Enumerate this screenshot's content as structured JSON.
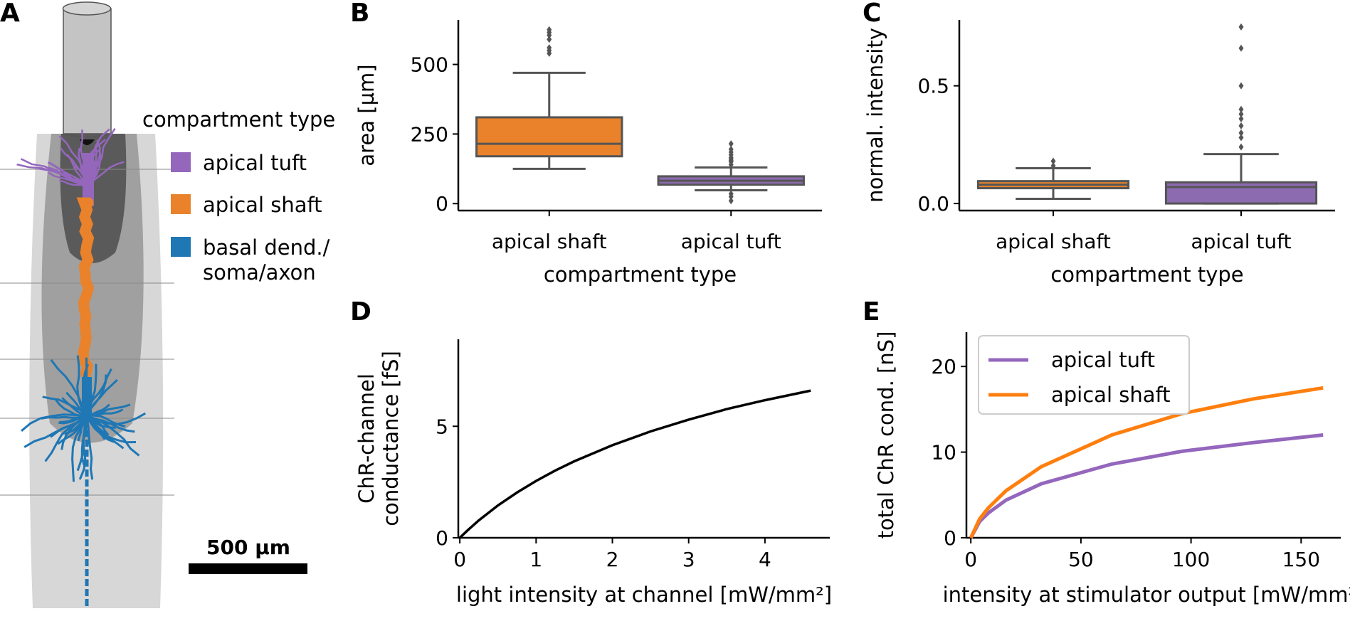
{
  "panel_letters": {
    "A": "A",
    "B": "B",
    "C": "C",
    "D": "D",
    "E": "E"
  },
  "panel_a": {
    "legend_title": "compartment type",
    "legend": [
      {
        "label": "apical tuft",
        "color": "#9467bd"
      },
      {
        "label": "apical shaft",
        "color": "#e9822a"
      },
      {
        "label": "basal dend./\nsoma/axon",
        "color": "#1f77b4"
      }
    ],
    "scalebar_label": "500 µm"
  },
  "chart_data": [
    {
      "panel": "B",
      "type": "box",
      "categories": [
        "apical shaft",
        "apical tuft"
      ],
      "xlabel": "compartment type",
      "ylabel": "area [µm]",
      "yticks": [
        0,
        250,
        500
      ],
      "ylim": [
        -25,
        660
      ],
      "grid": false,
      "boxes": [
        {
          "name": "apical shaft",
          "color": "#e9822a",
          "whislo": 125,
          "q1": 170,
          "median": 215,
          "q3": 310,
          "whishi": 470,
          "fliers": [
            540,
            550,
            560,
            590,
            605,
            615,
            625
          ]
        },
        {
          "name": "apical tuft",
          "color": "#8c6bb1",
          "whislo": 48,
          "q1": 68,
          "median": 82,
          "q3": 98,
          "whishi": 130,
          "fliers": [
            10,
            25,
            35,
            140,
            150,
            155,
            160,
            165,
            175,
            185,
            195,
            215
          ]
        }
      ]
    },
    {
      "panel": "C",
      "type": "box",
      "categories": [
        "apical shaft",
        "apical tuft"
      ],
      "xlabel": "compartment type",
      "ylabel": "normal. intensity",
      "yticks": [
        0.0,
        0.5
      ],
      "yticklabels": [
        "0.0",
        "0.5"
      ],
      "ylim": [
        -0.03,
        0.78
      ],
      "grid": false,
      "boxes": [
        {
          "name": "apical shaft",
          "color": "#e9822a",
          "whislo": 0.02,
          "q1": 0.065,
          "median": 0.08,
          "q3": 0.095,
          "whishi": 0.15,
          "fliers": [
            0.16,
            0.18
          ]
        },
        {
          "name": "apical tuft",
          "color": "#8c6bb1",
          "whislo": 0.0,
          "q1": 0.0,
          "median": 0.07,
          "q3": 0.09,
          "whishi": 0.21,
          "fliers": [
            0.24,
            0.28,
            0.3,
            0.33,
            0.36,
            0.38,
            0.4,
            0.5,
            0.66,
            0.75
          ]
        }
      ]
    },
    {
      "panel": "D",
      "type": "line",
      "xlabel": "light intensity at channel [mW/mm²]",
      "ylabel": "ChR-channel\nconductance [fS]",
      "xticks": [
        0,
        1,
        2,
        3,
        4
      ],
      "yticks": [
        0,
        5
      ],
      "xlim": [
        -0.02,
        4.85
      ],
      "ylim": [
        0,
        8.9
      ],
      "grid": false,
      "series": [
        {
          "color": "#000000",
          "x": [
            0,
            0.1,
            0.25,
            0.5,
            0.75,
            1.0,
            1.25,
            1.5,
            2.0,
            2.5,
            3.0,
            3.5,
            4.0,
            4.6
          ],
          "y": [
            0,
            0.33,
            0.78,
            1.45,
            2.03,
            2.55,
            3.01,
            3.43,
            4.15,
            4.77,
            5.3,
            5.77,
            6.17,
            6.6
          ]
        }
      ]
    },
    {
      "panel": "E",
      "type": "line",
      "xlabel": "intensity at stimulator output [mW/mm²]",
      "ylabel": "total ChR cond. [nS]",
      "xticks": [
        0,
        50,
        100,
        150
      ],
      "yticks": [
        0,
        10,
        20
      ],
      "xlim": [
        -2,
        168
      ],
      "ylim": [
        0,
        24
      ],
      "legend_placement": "top-left",
      "grid": false,
      "series": [
        {
          "name": "apical tuft",
          "color": "#9467bd",
          "x": [
            0,
            4,
            8,
            16,
            32,
            64,
            96,
            128,
            160
          ],
          "y": [
            0,
            1.9,
            2.9,
            4.4,
            6.3,
            8.6,
            10.1,
            11.1,
            12.0
          ]
        },
        {
          "name": "apical shaft",
          "color": "#ff7f0e",
          "x": [
            0,
            4,
            8,
            16,
            32,
            64,
            96,
            128,
            160
          ],
          "y": [
            0,
            2.2,
            3.5,
            5.5,
            8.3,
            12.0,
            14.5,
            16.2,
            17.5
          ]
        }
      ]
    }
  ]
}
